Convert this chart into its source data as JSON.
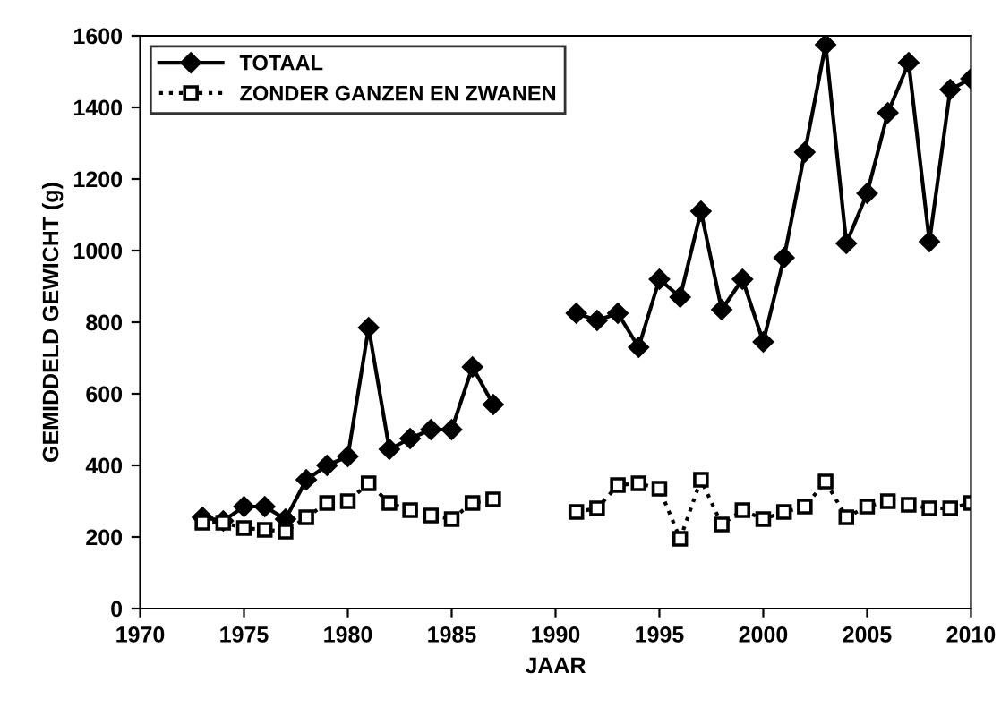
{
  "chart_data": {
    "type": "line",
    "xlabel": "JAAR",
    "ylabel": "GEMIDDELD GEWICHT (g)",
    "x": [
      1973,
      1974,
      1975,
      1976,
      1977,
      1978,
      1979,
      1980,
      1981,
      1982,
      1983,
      1984,
      1985,
      1986,
      1987,
      1988,
      1989,
      1990,
      1991,
      1992,
      1993,
      1994,
      1995,
      1996,
      1997,
      1998,
      1999,
      2000,
      2001,
      2002,
      2003,
      2004,
      2005,
      2006,
      2007,
      2008,
      2009,
      2010
    ],
    "series": [
      {
        "name": "TOTAAL",
        "color": "#000000",
        "marker": "diamond",
        "line_style": "solid",
        "values": [
          255,
          245,
          285,
          285,
          250,
          360,
          400,
          425,
          785,
          445,
          475,
          500,
          500,
          675,
          570,
          null,
          null,
          null,
          825,
          805,
          825,
          730,
          920,
          870,
          1110,
          835,
          920,
          745,
          980,
          1275,
          1575,
          1020,
          1160,
          1385,
          1525,
          1025,
          1450,
          1480
        ]
      },
      {
        "name": "ZONDER GANZEN EN ZWANEN",
        "color": "#000000",
        "marker": "square",
        "line_style": "dotted",
        "values": [
          240,
          240,
          225,
          220,
          215,
          255,
          295,
          300,
          350,
          295,
          275,
          260,
          250,
          295,
          305,
          null,
          null,
          null,
          270,
          280,
          345,
          350,
          335,
          195,
          360,
          235,
          275,
          250,
          270,
          285,
          355,
          255,
          285,
          300,
          290,
          280,
          280,
          295
        ]
      }
    ],
    "xlim": [
      1970,
      2010
    ],
    "xticks": [
      1970,
      1975,
      1980,
      1985,
      1990,
      1995,
      2000,
      2005,
      2010
    ],
    "ylim": [
      0,
      1600
    ],
    "yticks": [
      0,
      200,
      400,
      600,
      800,
      1000,
      1200,
      1400,
      1600
    ],
    "grid": false,
    "legend": "top left"
  }
}
